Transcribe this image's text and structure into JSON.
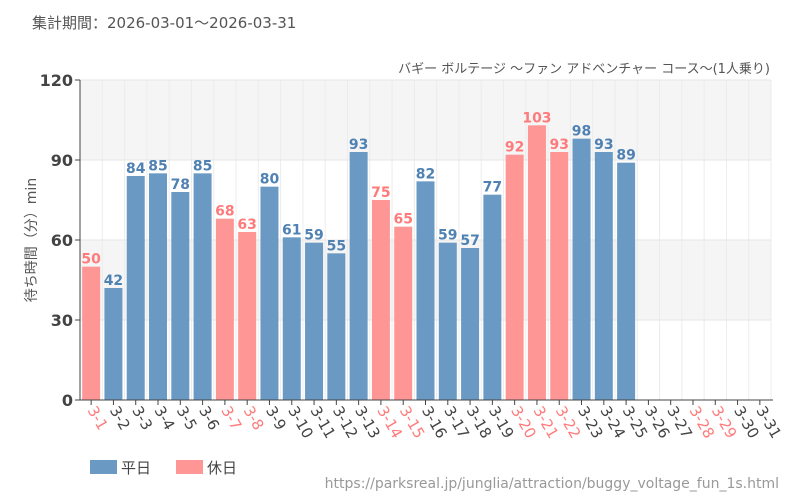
{
  "period_label": "集計期間：2026-03-01～2026-03-31",
  "chart_data": {
    "type": "bar",
    "title": "バギー ボルテージ ～ファン アドベンチャー コース～(1人乗り)",
    "ylabel": "待ち時間（分）min",
    "xlabel": "",
    "ylim": [
      0,
      120
    ],
    "yticks": [
      0,
      30,
      60,
      90,
      120
    ],
    "grid": true,
    "categories": [
      "3-1",
      "3-2",
      "3-3",
      "3-4",
      "3-5",
      "3-6",
      "3-7",
      "3-8",
      "3-9",
      "3-10",
      "3-11",
      "3-12",
      "3-13",
      "3-14",
      "3-15",
      "3-16",
      "3-17",
      "3-18",
      "3-19",
      "3-20",
      "3-21",
      "3-22",
      "3-23",
      "3-24",
      "3-25",
      "3-26",
      "3-27",
      "3-28",
      "3-29",
      "3-30",
      "3-31"
    ],
    "holiday": [
      true,
      false,
      false,
      false,
      false,
      false,
      true,
      true,
      false,
      false,
      false,
      false,
      false,
      true,
      true,
      false,
      false,
      false,
      false,
      true,
      true,
      true,
      false,
      false,
      false,
      false,
      false,
      true,
      true,
      false,
      false
    ],
    "values": [
      50,
      42,
      84,
      85,
      78,
      85,
      68,
      63,
      80,
      61,
      59,
      55,
      93,
      75,
      65,
      82,
      59,
      57,
      77,
      92,
      103,
      93,
      98,
      93,
      89,
      null,
      null,
      null,
      null,
      null,
      null
    ],
    "legend": [
      {
        "name": "平日",
        "color": "#6a9ac4"
      },
      {
        "name": "休日",
        "color": "#ff9696"
      }
    ],
    "legend_placement": "bottom-left",
    "colors": {
      "weekday_bar": "#6a9ac4",
      "holiday_bar": "#ff9696",
      "weekday_label": "#4f82b3",
      "holiday_label": "#ff7b7b"
    }
  },
  "source_url": "https://parksreal.jp/junglia/attraction/buggy_voltage_fun_1s.html"
}
